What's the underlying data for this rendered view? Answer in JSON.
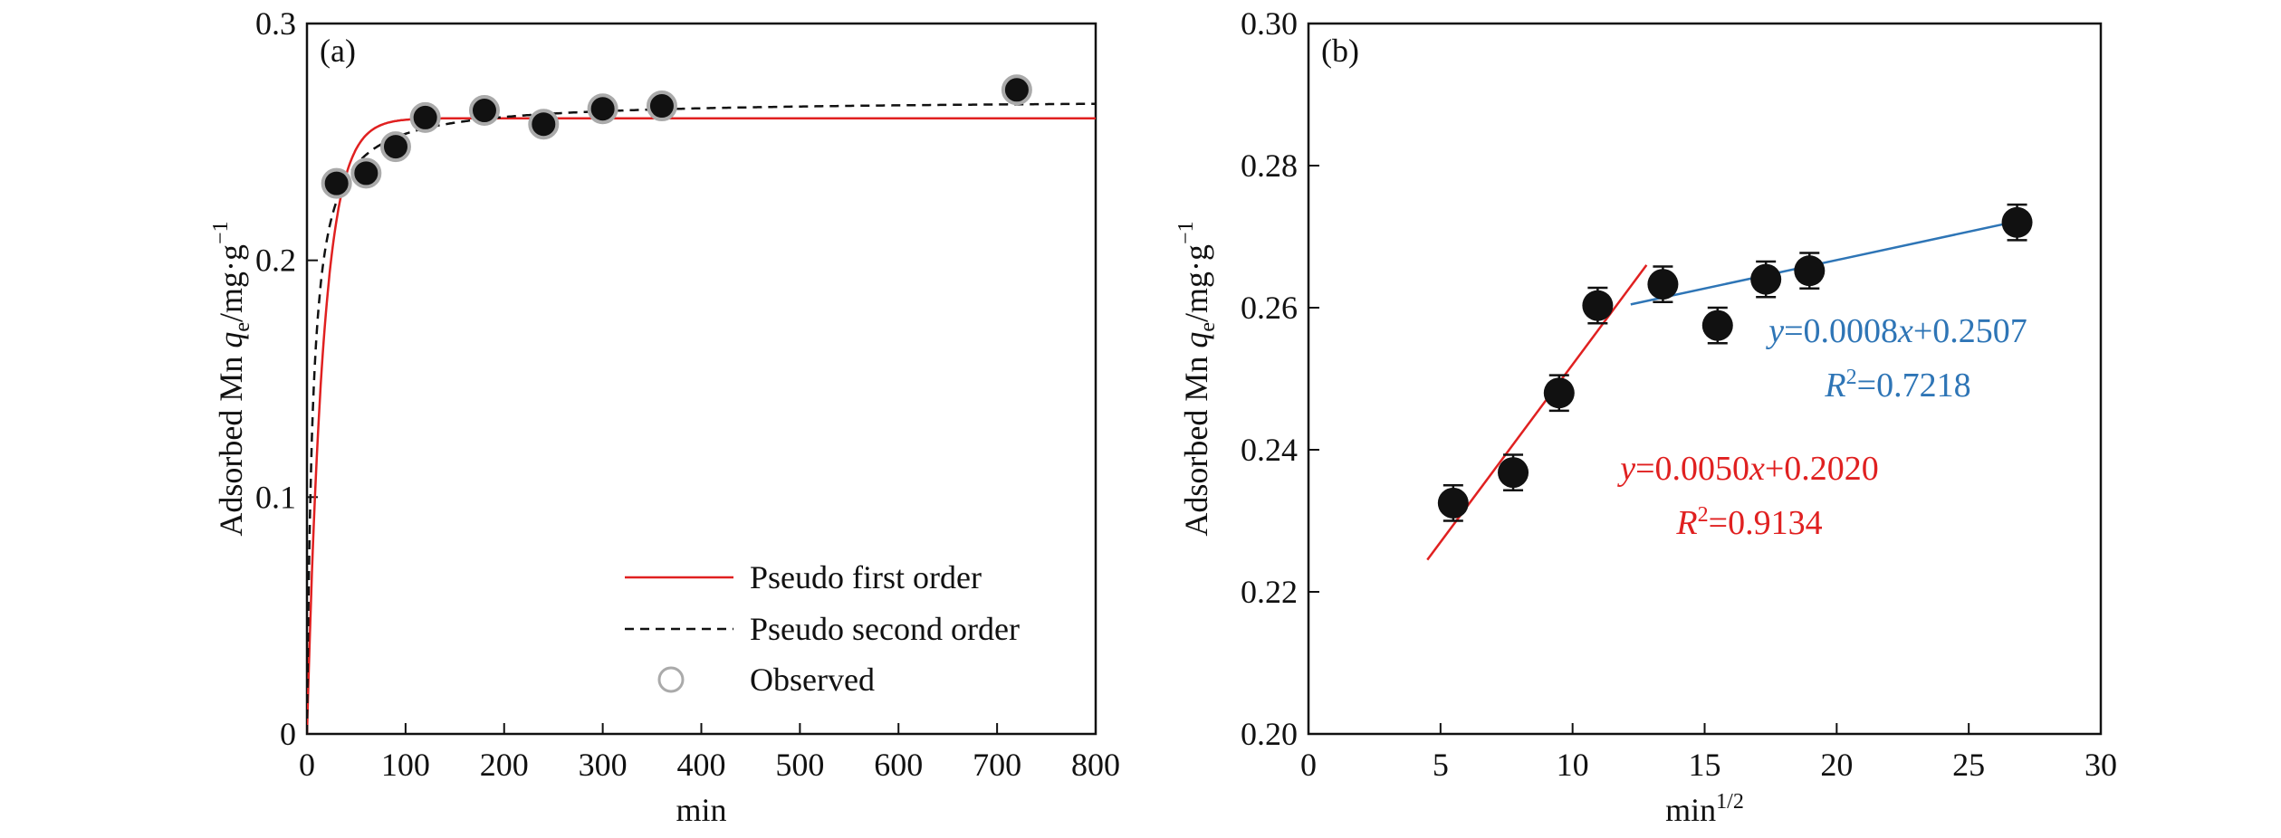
{
  "chart_data": [
    {
      "type": "line",
      "panel_label": "(a)",
      "xlabel": "min",
      "ylabel_prefix": "Adsorbed Mn ",
      "ylabel_var": "q",
      "ylabel_sub": "e",
      "ylabel_unit": "/mg·g",
      "ylabel_sup": "−1",
      "xlim": [
        0,
        800
      ],
      "ylim": [
        0,
        0.3
      ],
      "xticks": [
        0,
        100,
        200,
        300,
        400,
        500,
        600,
        700,
        800
      ],
      "yticks": [
        0,
        0.1,
        0.2,
        0.3
      ],
      "ytick_labels": [
        "0",
        "0.1",
        "0.2",
        "0.3"
      ],
      "legend_position": "bottom-right",
      "series": [
        {
          "name": "Pseudo first order",
          "kind": "line",
          "color": "#e02020",
          "model": "pfo",
          "qe": 0.26,
          "k": 0.06
        },
        {
          "name": "Pseudo second order",
          "kind": "dashed",
          "color": "#111111",
          "model": "pso",
          "qe": 0.268,
          "k": 0.65
        },
        {
          "name": "Observed",
          "kind": "scatter",
          "color": "#111111",
          "edge": "#aaaaaa",
          "x": [
            30,
            60,
            90,
            120,
            180,
            240,
            300,
            360,
            720
          ],
          "y": [
            0.2325,
            0.2368,
            0.248,
            0.2603,
            0.2633,
            0.2575,
            0.264,
            0.2652,
            0.272
          ]
        }
      ]
    },
    {
      "type": "scatter",
      "panel_label": "(b)",
      "xlabel": "min",
      "xlabel_sup": "1/2",
      "ylabel_prefix": "Adsorbed Mn ",
      "ylabel_var": "q",
      "ylabel_sub": "e",
      "ylabel_unit": "/mg·g",
      "ylabel_sup": "−1",
      "xlim": [
        0,
        30
      ],
      "ylim": [
        0.2,
        0.3
      ],
      "xticks": [
        0,
        5,
        10,
        15,
        20,
        25,
        30
      ],
      "yticks": [
        0.2,
        0.22,
        0.24,
        0.26,
        0.28,
        0.3
      ],
      "ytick_labels": [
        "0.20",
        "0.22",
        "0.24",
        "0.26",
        "0.28",
        "0.30"
      ],
      "points": {
        "x": [
          5.48,
          7.75,
          9.49,
          10.95,
          13.42,
          15.49,
          17.32,
          18.97,
          26.83
        ],
        "y": [
          0.2325,
          0.2368,
          0.248,
          0.2603,
          0.2633,
          0.2575,
          0.264,
          0.2652,
          0.272
        ],
        "error": 0.0025,
        "color": "#111111"
      },
      "fits": [
        {
          "slope": 0.005,
          "intercept": 0.202,
          "x_range": [
            4.5,
            12.8
          ],
          "color": "#e02020",
          "eq_y": "y",
          "eq_text": "=0.0050",
          "eq_x": "x",
          "eq_tail": "+0.2020",
          "r2_label": "R",
          "r2_sup": "2",
          "r2_text": "=0.9134"
        },
        {
          "slope": 0.0008,
          "intercept": 0.2507,
          "x_range": [
            12.2,
            26.8
          ],
          "color": "#2e75b6",
          "eq_y": "y",
          "eq_text": "=0.0008",
          "eq_x": "x",
          "eq_tail": "+0.2507",
          "r2_label": "R",
          "r2_sup": "2",
          "r2_text": "=0.7218"
        }
      ]
    }
  ]
}
